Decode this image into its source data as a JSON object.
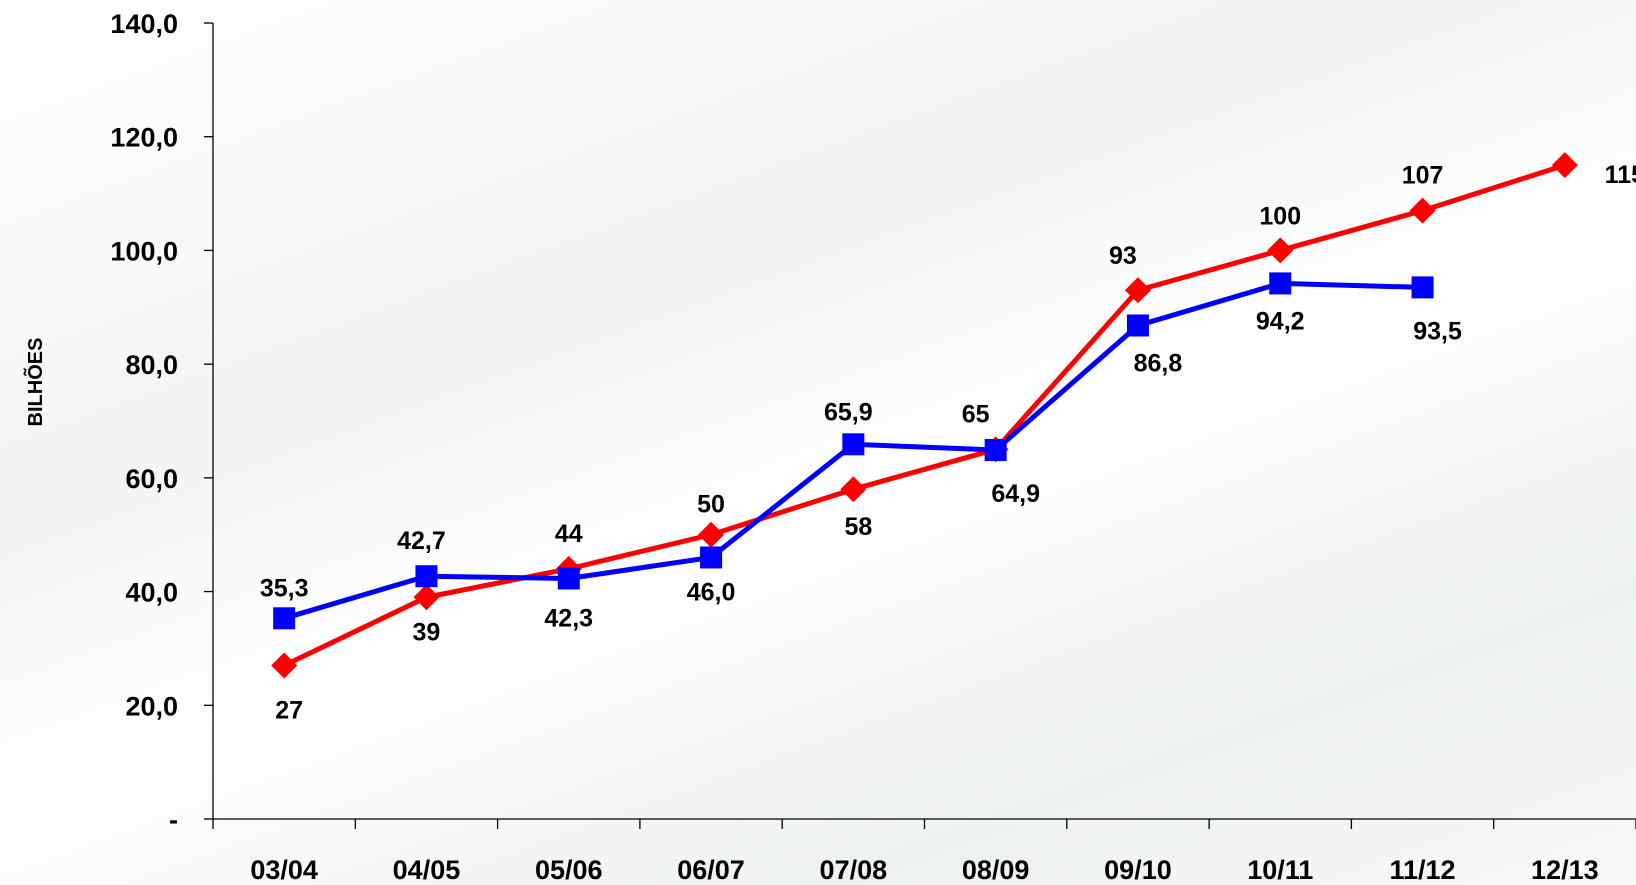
{
  "chart_data": {
    "type": "line",
    "title": "",
    "xlabel": "",
    "ylabel": "BILHÕES",
    "ylim": [
      0,
      140
    ],
    "y_ticks": [
      {
        "value": 0,
        "label": "-"
      },
      {
        "value": 20,
        "label": "20,0"
      },
      {
        "value": 40,
        "label": "40,0"
      },
      {
        "value": 60,
        "label": "60,0"
      },
      {
        "value": 80,
        "label": "80,0"
      },
      {
        "value": 100,
        "label": "100,0"
      },
      {
        "value": 120,
        "label": "120,0"
      },
      {
        "value": 140,
        "label": "140,0"
      }
    ],
    "categories": [
      "03/04",
      "04/05",
      "05/06",
      "06/07",
      "07/08",
      "08/09",
      "09/10",
      "10/11",
      "11/12",
      "12/13"
    ],
    "grid": false,
    "legend": "none",
    "series": [
      {
        "color": "#ff0000",
        "marker": "diamond",
        "values": [
          27,
          39,
          44,
          50,
          58,
          65,
          93,
          100,
          107,
          115
        ],
        "labels": [
          "27",
          "39",
          "44",
          "50",
          "58",
          "65",
          "93",
          "100",
          "107",
          "115"
        ]
      },
      {
        "color": "#0000ff",
        "marker": "square",
        "values": [
          35.3,
          42.7,
          42.3,
          46.0,
          65.9,
          64.9,
          86.8,
          94.2,
          93.5,
          null
        ],
        "labels": [
          "35,3",
          "42,7",
          "42,3",
          "46,0",
          "65,9",
          "64,9",
          "86,8",
          "94,2",
          "93,5",
          null
        ]
      }
    ]
  }
}
